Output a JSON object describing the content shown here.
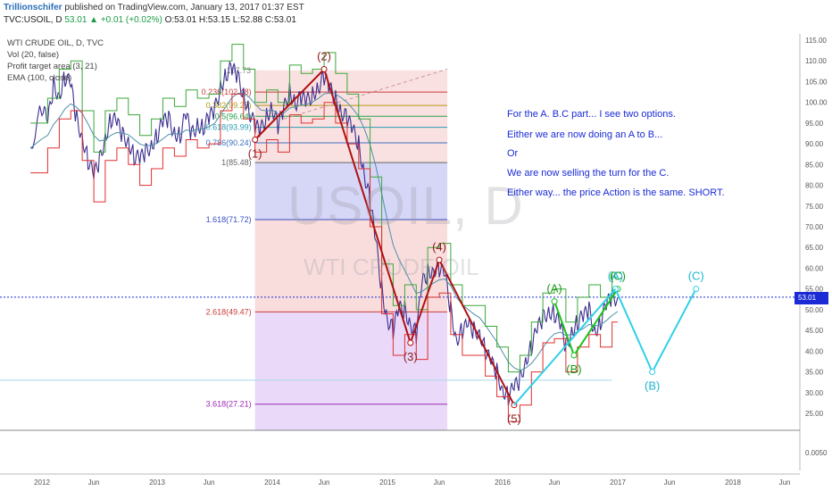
{
  "header": {
    "author": "Trillionschifer",
    "published": "published on TradingView.com, January 13, 2017 01:37 EST",
    "symbol": "TVC:USOIL, D",
    "change": "53.01 ▲ +0.01 (+0.02%)",
    "ohlc": "O:53.01 H:53.15 L:52.88 C:53.01"
  },
  "indicators": [
    "WTI CRUDE OIL, D, TVC",
    "Vol (20, false)",
    "Profit target area (3, 21)",
    "EMA (100, close)"
  ],
  "watermark": {
    "big": "USOIL, D",
    "small": "WTI CRUDE OIL"
  },
  "notes": [
    "For the A. B.C part... I see two options.",
    "Either we are now doing an A to B...",
    "Or",
    "We are now selling the turn for the C.",
    "Either way... the price Action is the same. SHORT."
  ],
  "last_price_label": "53.01",
  "colors": {
    "note": "#1a2bd6",
    "wave_red": "#b01010",
    "wave_green": "#19c319",
    "wave_cyan": "#2fd0e8",
    "last_price": "#1a2bd6"
  },
  "chart_data": {
    "type": "line",
    "title": "TVC:USOIL, D",
    "x_axis": {
      "ticks": [
        "2012",
        "Jun",
        "2013",
        "Jun",
        "2014",
        "Jun",
        "2015",
        "Jun",
        "2016",
        "Jun",
        "2017",
        "Jun",
        "2018",
        "Jun"
      ]
    },
    "y_axis": {
      "range": [
        20,
        117
      ],
      "ticks": [
        115,
        110,
        105,
        100,
        95,
        90,
        85,
        80,
        75,
        70,
        65,
        60,
        55,
        50,
        45,
        40,
        35,
        30,
        25
      ],
      "tick_labels": [
        "115.00",
        "110.00",
        "105.00",
        "100.00",
        "95.00",
        "90.00",
        "85.00",
        "80.00",
        "75.00",
        "70.00",
        "65.00",
        "60.00",
        "55.00",
        "50.00",
        "45.00",
        "40.00",
        "35.00",
        "30.00",
        "25.00"
      ],
      "lower_pane_tick": "0.0050"
    },
    "price_series": [
      [
        2011.9,
        89
      ],
      [
        2012.0,
        99
      ],
      [
        2012.05,
        95
      ],
      [
        2012.1,
        104
      ],
      [
        2012.15,
        102
      ],
      [
        2012.2,
        106
      ],
      [
        2012.25,
        104
      ],
      [
        2012.3,
        96
      ],
      [
        2012.35,
        92
      ],
      [
        2012.4,
        86
      ],
      [
        2012.45,
        82
      ],
      [
        2012.5,
        86
      ],
      [
        2012.55,
        92
      ],
      [
        2012.6,
        96
      ],
      [
        2012.65,
        95
      ],
      [
        2012.7,
        92
      ],
      [
        2012.75,
        91
      ],
      [
        2012.8,
        87
      ],
      [
        2012.85,
        86
      ],
      [
        2012.9,
        88
      ],
      [
        2012.95,
        90
      ],
      [
        2013.0,
        92
      ],
      [
        2013.05,
        95
      ],
      [
        2013.1,
        96
      ],
      [
        2013.15,
        93
      ],
      [
        2013.2,
        92
      ],
      [
        2013.25,
        97
      ],
      [
        2013.3,
        92
      ],
      [
        2013.35,
        95
      ],
      [
        2013.4,
        94
      ],
      [
        2013.45,
        96
      ],
      [
        2013.5,
        98
      ],
      [
        2013.55,
        104
      ],
      [
        2013.6,
        107
      ],
      [
        2013.65,
        108
      ],
      [
        2013.7,
        106
      ],
      [
        2013.75,
        102
      ],
      [
        2013.8,
        98
      ],
      [
        2013.85,
        94
      ],
      [
        2013.9,
        93
      ],
      [
        2013.95,
        97
      ],
      [
        2014.0,
        99
      ],
      [
        2014.05,
        94
      ],
      [
        2014.1,
        98
      ],
      [
        2014.15,
        103
      ],
      [
        2014.2,
        100
      ],
      [
        2014.25,
        101
      ],
      [
        2014.3,
        100
      ],
      [
        2014.35,
        102
      ],
      [
        2014.4,
        104
      ],
      [
        2014.45,
        106
      ],
      [
        2014.5,
        103
      ],
      [
        2014.55,
        101
      ],
      [
        2014.6,
        98
      ],
      [
        2014.65,
        96
      ],
      [
        2014.7,
        93
      ],
      [
        2014.75,
        90
      ],
      [
        2014.8,
        83
      ],
      [
        2014.85,
        76
      ],
      [
        2014.9,
        66
      ],
      [
        2014.95,
        55
      ],
      [
        2015.0,
        48
      ],
      [
        2015.05,
        45
      ],
      [
        2015.1,
        50
      ],
      [
        2015.15,
        50
      ],
      [
        2015.2,
        47
      ],
      [
        2015.25,
        44
      ],
      [
        2015.3,
        56
      ],
      [
        2015.35,
        59
      ],
      [
        2015.4,
        60
      ],
      [
        2015.45,
        60
      ],
      [
        2015.5,
        58
      ],
      [
        2015.55,
        50
      ],
      [
        2015.6,
        43
      ],
      [
        2015.65,
        45
      ],
      [
        2015.7,
        46
      ],
      [
        2015.75,
        45
      ],
      [
        2015.8,
        45
      ],
      [
        2015.85,
        40
      ],
      [
        2015.9,
        37
      ],
      [
        2015.95,
        35
      ],
      [
        2016.0,
        31
      ],
      [
        2016.05,
        29
      ],
      [
        2016.1,
        31
      ],
      [
        2016.15,
        33
      ],
      [
        2016.2,
        38
      ],
      [
        2016.25,
        41
      ],
      [
        2016.3,
        45
      ],
      [
        2016.35,
        48
      ],
      [
        2016.4,
        50
      ],
      [
        2016.45,
        49
      ],
      [
        2016.5,
        46
      ],
      [
        2016.55,
        41
      ],
      [
        2016.6,
        45
      ],
      [
        2016.65,
        47
      ],
      [
        2016.7,
        48
      ],
      [
        2016.75,
        50
      ],
      [
        2016.8,
        45
      ],
      [
        2016.85,
        47
      ],
      [
        2016.9,
        51
      ],
      [
        2016.95,
        53
      ],
      [
        2017.0,
        53
      ]
    ],
    "fibonacci": [
      {
        "label": "0.236(102.48)",
        "value": 102.48,
        "color": "#c93b3b"
      },
      {
        "label": "0.382(99.25)",
        "value": 99.25,
        "color": "#b09a12"
      },
      {
        "label": "0.5(96.64)",
        "value": 96.64,
        "color": "#26a14a"
      },
      {
        "label": "0.618(93.99)",
        "value": 93.99,
        "color": "#2a9cb3"
      },
      {
        "label": "0.786(90.24)",
        "value": 90.24,
        "color": "#3d6fc1"
      },
      {
        "label": "1(85.48)",
        "value": 85.48,
        "color": "#666666"
      },
      {
        "label": "1.618(71.72)",
        "value": 71.72,
        "color": "#3a4fc0"
      },
      {
        "label": "2.618(49.47)",
        "value": 49.47,
        "color": "#c93b3b"
      },
      {
        "label": "3.618(27.21)",
        "value": 27.21,
        "color": "#9b2ab3"
      }
    ],
    "fib_top_label": "107.73",
    "waves": {
      "impulse": [
        {
          "label": "(1)",
          "x": 2013.85,
          "y": 91
        },
        {
          "label": "(2)",
          "x": 2014.45,
          "y": 108
        },
        {
          "label": "(3)",
          "x": 2015.2,
          "y": 42
        },
        {
          "label": "(4)",
          "x": 2015.45,
          "y": 62
        },
        {
          "label": "(5)",
          "x": 2016.1,
          "y": 27
        }
      ],
      "green_abc": [
        {
          "label": "(A)",
          "x": 2016.45,
          "y": 52
        },
        {
          "label": "(B)",
          "x": 2016.62,
          "y": 39
        },
        {
          "label": "(C)",
          "x": 2017.0,
          "y": 55
        }
      ],
      "cyan_abc": [
        {
          "label": "(A)",
          "x": 2016.98,
          "y": 55
        },
        {
          "label": "(B)",
          "x": 2017.3,
          "y": 35
        },
        {
          "label": "(C)",
          "x": 2017.68,
          "y": 55
        }
      ]
    },
    "last_price": 53.01
  }
}
